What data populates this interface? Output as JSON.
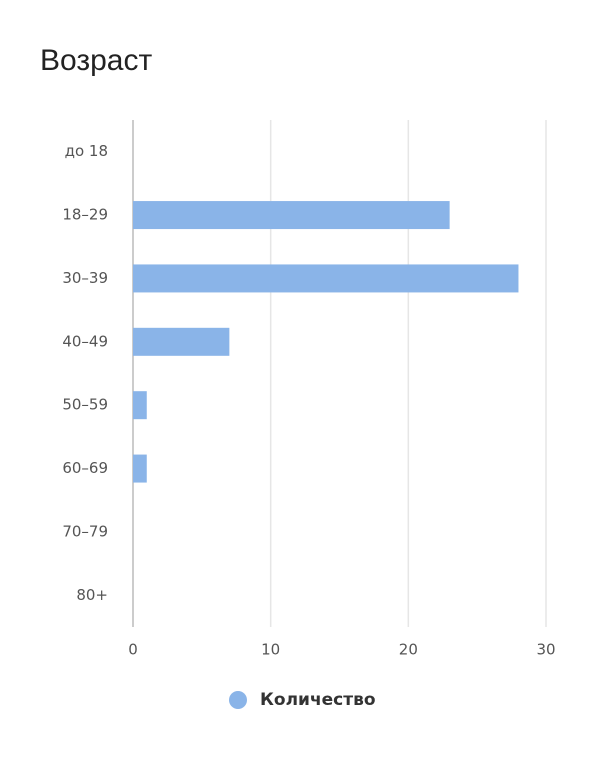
{
  "chart_data": {
    "type": "hbar",
    "title": "Возраст",
    "categories": [
      "до 18",
      "18–29",
      "30–39",
      "40–49",
      "50–59",
      "60–69",
      "70–79",
      "80+"
    ],
    "series": [
      {
        "name": "Количество",
        "color": "#8ab4e8",
        "values": [
          0,
          23,
          28,
          7,
          1,
          1,
          0,
          0
        ]
      }
    ],
    "xlim": [
      0,
      30
    ],
    "xticks": [
      0,
      10,
      20,
      30
    ],
    "grid": true
  }
}
